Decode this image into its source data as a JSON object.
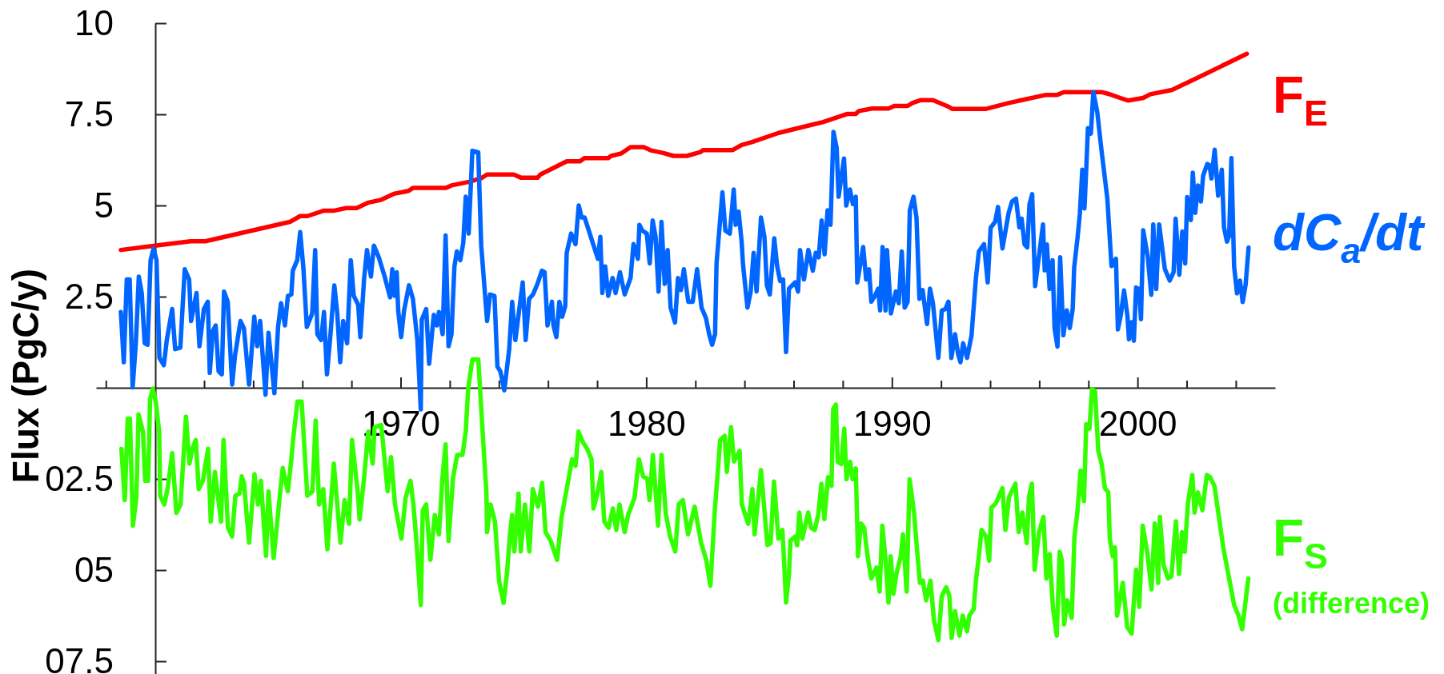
{
  "chart_data": {
    "type": "line",
    "ylabel": "Flux (PgC/y)",
    "xlim": [
      1957.6,
      2005.6
    ],
    "ylim": [
      -7.85,
      10
    ],
    "xticks": [
      {
        "value": 1958,
        "label": null
      },
      {
        "value": 1962,
        "label": null
      },
      {
        "value": 1964,
        "label": null
      },
      {
        "value": 1966,
        "label": null
      },
      {
        "value": 1968,
        "label": null
      },
      1970,
      {
        "value": 1972,
        "label": null
      },
      {
        "value": 1974,
        "label": null
      },
      {
        "value": 1976,
        "label": null
      },
      {
        "value": 1978,
        "label": null
      },
      1980,
      {
        "value": 1982,
        "label": null
      },
      {
        "value": 1984,
        "label": null
      },
      {
        "value": 1986,
        "label": null
      },
      {
        "value": 1988,
        "label": null
      },
      1990,
      {
        "value": 1992,
        "label": null
      },
      {
        "value": 1994,
        "label": null
      },
      {
        "value": 1996,
        "label": null
      },
      {
        "value": 1998,
        "label": null
      },
      2000,
      {
        "value": 2002,
        "label": null
      },
      {
        "value": 2004,
        "label": null
      }
    ],
    "yticks": [
      10,
      7.5,
      5,
      2.5,
      {
        "value": -2.5,
        "label": "02.5"
      },
      {
        "value": -5,
        "label": "05"
      },
      {
        "value": -7.5,
        "label": "07.5"
      }
    ],
    "annotations": [
      "(difference)"
    ],
    "series": [
      {
        "name": "F$_{E}$",
        "color": "#ff0000",
        "x": [
          1958.61,
          1960.0,
          1961.45,
          1962.05,
          1965.49,
          1965.91,
          1966.21,
          1966.88,
          1967.3,
          1967.78,
          1968.21,
          1968.69,
          1969.18,
          1969.72,
          1970.32,
          1970.5,
          1971.83,
          1972.07,
          1972.79,
          1973.28,
          1973.52,
          1974.6,
          1974.91,
          1975.57,
          1975.69,
          1976.34,
          1976.76,
          1977.3,
          1977.48,
          1978.45,
          1978.57,
          1978.99,
          1979.36,
          1979.9,
          1980.2,
          1980.69,
          1981.11,
          1981.65,
          1982.19,
          1982.31,
          1983.52,
          1983.88,
          1984.31,
          1985.39,
          1987.2,
          1988.17,
          1988.53,
          1988.65,
          1989.19,
          1989.86,
          1990.1,
          1990.64,
          1990.83,
          1991.18,
          1991.67,
          1992.27,
          1992.45,
          1993.84,
          1994.75,
          1996.24,
          1996.71,
          1997.0,
          1998.53,
          1998.82,
          1999.29,
          1999.61,
          2000.23,
          2000.52,
          2001.4,
          2002.46,
          2004.45
        ],
        "values": [
          3.78,
          3.9,
          4.02,
          4.02,
          4.55,
          4.71,
          4.71,
          4.86,
          4.86,
          4.93,
          4.93,
          5.08,
          5.15,
          5.32,
          5.4,
          5.48,
          5.48,
          5.55,
          5.65,
          5.75,
          5.85,
          5.85,
          5.76,
          5.76,
          5.85,
          6.07,
          6.21,
          6.21,
          6.3,
          6.3,
          6.36,
          6.43,
          6.6,
          6.6,
          6.51,
          6.44,
          6.36,
          6.36,
          6.46,
          6.52,
          6.52,
          6.66,
          6.74,
          6.99,
          7.29,
          7.51,
          7.51,
          7.59,
          7.66,
          7.66,
          7.73,
          7.73,
          7.81,
          7.89,
          7.89,
          7.72,
          7.65,
          7.65,
          7.81,
          8.03,
          8.03,
          8.11,
          8.11,
          8.06,
          7.95,
          7.88,
          7.95,
          8.05,
          8.17,
          8.51,
          9.16
        ]
      },
      {
        "name": "dC$_{a}$/dt",
        "color": "#0066ff",
        "x": [
          1958.61,
          1958.73,
          1958.85,
          1958.97,
          1959.09,
          1959.22,
          1959.34,
          1959.46,
          1959.58,
          1959.7,
          1959.82,
          1959.94,
          1960.06,
          1960.18,
          1960.36,
          1960.48,
          1960.7,
          1960.82,
          1961.03,
          1961.21,
          1961.39,
          1961.47,
          1961.69,
          1961.81,
          1961.99,
          1962.15,
          1962.23,
          1962.35,
          1962.47,
          1962.59,
          1962.72,
          1962.81,
          1962.96,
          1963.14,
          1963.26,
          1963.48,
          1963.62,
          1963.83,
          1964.04,
          1964.16,
          1964.28,
          1964.5,
          1964.62,
          1964.86,
          1965.01,
          1965.13,
          1965.29,
          1965.41,
          1965.55,
          1965.61,
          1965.79,
          1965.91,
          1966.04,
          1966.18,
          1966.4,
          1966.52,
          1966.61,
          1966.76,
          1966.88,
          1967.0,
          1967.12,
          1967.3,
          1967.42,
          1967.54,
          1967.66,
          1967.82,
          1967.97,
          1968.09,
          1968.27,
          1968.36,
          1968.51,
          1968.63,
          1968.79,
          1968.91,
          1969.11,
          1969.35,
          1969.57,
          1969.66,
          1969.75,
          1969.84,
          1969.9,
          1970.02,
          1970.14,
          1970.34,
          1970.5,
          1970.68,
          1970.82,
          1970.86,
          1971.04,
          1971.16,
          1971.35,
          1971.47,
          1971.56,
          1971.71,
          1971.83,
          1971.95,
          1972.07,
          1972.19,
          1972.29,
          1972.43,
          1972.55,
          1972.65,
          1972.77,
          1972.92,
          1973.16,
          1973.28,
          1973.52,
          1973.64,
          1973.82,
          1973.94,
          1974.06,
          1974.22,
          1974.42,
          1974.54,
          1974.67,
          1974.97,
          1975.09,
          1975.23,
          1975.39,
          1975.57,
          1975.75,
          1975.86,
          1975.98,
          1976.16,
          1976.22,
          1976.34,
          1976.46,
          1976.58,
          1976.7,
          1976.76,
          1976.94,
          1977.12,
          1977.25,
          1977.37,
          1977.49,
          1978.03,
          1978.13,
          1978.21,
          1978.33,
          1978.45,
          1978.63,
          1978.75,
          1978.93,
          1979.12,
          1979.36,
          1979.48,
          1979.66,
          1979.72,
          1979.84,
          1980.02,
          1980.14,
          1980.26,
          1980.38,
          1980.5,
          1980.62,
          1980.75,
          1980.87,
          1980.99,
          1981.17,
          1981.29,
          1981.41,
          1981.53,
          1981.71,
          1981.89,
          1982.07,
          1982.25,
          1982.43,
          1982.56,
          1982.68,
          1982.8,
          1982.86,
          1983.1,
          1983.22,
          1983.4,
          1983.56,
          1983.64,
          1983.76,
          1983.88,
          1983.94,
          1984.12,
          1984.25,
          1984.37,
          1984.49,
          1984.67,
          1984.81,
          1984.91,
          1985.03,
          1985.21,
          1985.33,
          1985.45,
          1985.57,
          1985.69,
          1985.81,
          1986.06,
          1986.18,
          1986.26,
          1986.42,
          1986.6,
          1986.78,
          1986.9,
          1987.02,
          1987.14,
          1987.26,
          1987.38,
          1987.5,
          1987.62,
          1987.75,
          1987.83,
          1988.05,
          1988.14,
          1988.29,
          1988.41,
          1988.53,
          1988.59,
          1988.83,
          1988.95,
          1989.07,
          1989.16,
          1989.31,
          1989.44,
          1989.52,
          1989.62,
          1989.74,
          1989.8,
          1989.96,
          1990.16,
          1990.28,
          1990.4,
          1990.52,
          1990.64,
          1990.73,
          1990.88,
          1991.0,
          1991.12,
          1991.25,
          1991.43,
          1991.55,
          1991.67,
          1991.89,
          1992.03,
          1992.18,
          1992.3,
          1992.42,
          1992.57,
          1992.69,
          1992.79,
          1992.9,
          1993.06,
          1993.24,
          1993.42,
          1993.54,
          1993.75,
          1993.9,
          1994.02,
          1994.2,
          1994.32,
          1994.5,
          1994.75,
          1994.89,
          1995.05,
          1995.19,
          1995.28,
          1995.4,
          1995.51,
          1995.6,
          1995.71,
          1995.83,
          1996.01,
          1996.15,
          1996.22,
          1996.31,
          1996.42,
          1996.54,
          1996.62,
          1996.74,
          1996.85,
          1996.98,
          1997.12,
          1997.24,
          1997.36,
          1997.42,
          1997.56,
          1997.65,
          1997.75,
          1997.84,
          1997.91,
          1997.98,
          1998.1,
          1998.2,
          1998.36,
          1998.53,
          1998.77,
          1998.94,
          1999.12,
          1999.2,
          1999.32,
          1999.45,
          1999.59,
          1999.65,
          1999.76,
          1999.85,
          1999.94,
          2000.06,
          2000.14,
          2000.23,
          2000.41,
          2000.56,
          2000.64,
          2000.76,
          2000.88,
          2001.11,
          2001.31,
          2001.47,
          2001.55,
          2001.7,
          2001.82,
          2001.94,
          2002.02,
          2002.17,
          2002.25,
          2002.35,
          2002.46,
          2002.58,
          2002.67,
          2002.84,
          2002.93,
          2003.01,
          2003.14,
          2003.28,
          2003.43,
          2003.52,
          2003.64,
          2003.73,
          2003.82,
          2003.93,
          2004.05,
          2004.17,
          2004.28,
          2004.4,
          2004.52
        ],
        "values": [
          2.08,
          0.7,
          2.97,
          2.97,
          0.01,
          1.22,
          3.05,
          2.6,
          1.22,
          1.18,
          3.5,
          3.82,
          3.5,
          0.82,
          0.62,
          1.31,
          2.16,
          1.06,
          1.1,
          3.25,
          2.97,
          1.83,
          2.6,
          1.14,
          2.16,
          2.36,
          0.41,
          1.55,
          1.71,
          0.45,
          0.37,
          2.64,
          2.36,
          0.09,
          0.9,
          1.83,
          1.63,
          0.09,
          1.95,
          1.14,
          1.83,
          -0.19,
          1.51,
          -0.15,
          1.67,
          2.32,
          1.71,
          2.52,
          2.56,
          3.21,
          3.5,
          4.27,
          3.29,
          1.67,
          2.04,
          3.78,
          1.47,
          1.31,
          2.08,
          0.37,
          1.27,
          2.81,
          2.04,
          0.7,
          1.83,
          1.22,
          3.5,
          2.52,
          2.28,
          1.39,
          2.97,
          3.78,
          3.05,
          3.9,
          3.58,
          3.05,
          2.48,
          3.25,
          2.52,
          3.17,
          2.12,
          1.39,
          2.12,
          2.81,
          2.44,
          1.31,
          -0.59,
          1.87,
          2.16,
          0.66,
          2.0,
          1.71,
          2.08,
          1.47,
          4.18,
          1.14,
          1.47,
          3.33,
          3.74,
          3.5,
          3.98,
          5.24,
          4.23,
          6.5,
          6.46,
          3.9,
          1.83,
          2.56,
          2.52,
          0.58,
          0.45,
          -0.07,
          1.06,
          2.36,
          1.31,
          2.89,
          1.31,
          2.44,
          2.56,
          2.85,
          3.21,
          3.17,
          1.71,
          2.36,
          1.71,
          1.39,
          2.36,
          1.95,
          2.24,
          3.7,
          4.23,
          3.94,
          5.0,
          4.67,
          4.67,
          3.54,
          4.14,
          2.6,
          3.33,
          2.52,
          3.01,
          2.6,
          3.17,
          2.56,
          3.01,
          3.94,
          3.54,
          4.47,
          4.31,
          4.23,
          3.41,
          4.59,
          4.14,
          2.64,
          4.55,
          2.85,
          3.78,
          2.2,
          1.79,
          3.01,
          2.68,
          3.25,
          2.36,
          2.36,
          3.25,
          2.2,
          1.91,
          1.47,
          1.18,
          1.47,
          3.41,
          5.36,
          4.31,
          4.23,
          5.44,
          4.47,
          4.83,
          4.02,
          3.37,
          2.2,
          2.64,
          3.7,
          2.64,
          4.67,
          4.14,
          2.81,
          2.56,
          4.1,
          3.33,
          2.93,
          2.97,
          0.98,
          2.72,
          2.89,
          2.64,
          3.78,
          2.97,
          3.78,
          3.21,
          3.7,
          3.58,
          4.59,
          3.66,
          4.87,
          4.47,
          7.02,
          6.58,
          5.24,
          6.29,
          5.0,
          5.44,
          5.04,
          5.24,
          2.89,
          3.86,
          2.97,
          3.25,
          2.36,
          2.52,
          2.72,
          2.12,
          3.86,
          2.12,
          3.78,
          2.04,
          2.64,
          2.32,
          3.74,
          2.2,
          2.36,
          4.87,
          5.24,
          4.67,
          2.44,
          2.68,
          1.75,
          2.72,
          2.32,
          0.82,
          2.12,
          2.16,
          2.36,
          0.82,
          1.47,
          0.94,
          0.7,
          1.22,
          0.82,
          1.43,
          3.01,
          3.74,
          3.94,
          2.89,
          4.39,
          4.55,
          4.96,
          3.82,
          4.79,
          5.11,
          5.19,
          4.4,
          4.64,
          3.93,
          3.85,
          5.03,
          5.31,
          2.79,
          3.73,
          4.48,
          3.22,
          3.93,
          2.71,
          3.5,
          1.64,
          1.13,
          3.58,
          1.44,
          2.12,
          1.64,
          2.16,
          3.3,
          4.13,
          4.76,
          5.98,
          4.92,
          5.98,
          7.12,
          6.97,
          8.11,
          7.56,
          6.53,
          5.19,
          3.34,
          3.54,
          1.6,
          2.0,
          2.67,
          1.96,
          1.33,
          1.8,
          1.29,
          2.75,
          2.71,
          1.88,
          4.32,
          3.62,
          2.55,
          4.48,
          2.71,
          4.48,
          3.26,
          2.94,
          3.18,
          4.64,
          3.1,
          4.29,
          3.41,
          5.23,
          4.6,
          5.9,
          4.8,
          5.55,
          5.11,
          5.82,
          6.14,
          6.1,
          5.74,
          6.53,
          5.27,
          5.98,
          4.4,
          4.01,
          4.17,
          6.3,
          3.34,
          2.59,
          2.94,
          2.35,
          2.83,
          3.85
        ]
      },
      {
        "name": "F$_{S}$",
        "color": "#33ff00",
        "x": [
          1958.63,
          1958.77,
          1958.89,
          1958.98,
          1959.1,
          1959.24,
          1959.33,
          1959.51,
          1959.6,
          1959.72,
          1959.8,
          1959.91,
          1960.03,
          1960.17,
          1960.21,
          1960.38,
          1960.52,
          1960.7,
          1960.87,
          1961.04,
          1961.26,
          1961.4,
          1961.52,
          1961.66,
          1961.78,
          1961.95,
          1962.16,
          1962.27,
          1962.44,
          1962.69,
          1962.79,
          1962.97,
          1963.14,
          1963.27,
          1963.44,
          1963.53,
          1963.62,
          1963.83,
          1964.05,
          1964.19,
          1964.31,
          1964.52,
          1964.62,
          1964.83,
          1965.1,
          1965.2,
          1965.41,
          1965.55,
          1965.62,
          1965.8,
          1965.97,
          1966.2,
          1966.41,
          1966.54,
          1966.68,
          1966.85,
          1967.02,
          1967.28,
          1967.55,
          1967.72,
          1967.9,
          1968.02,
          1968.25,
          1968.33,
          1968.51,
          1968.68,
          1968.86,
          1968.94,
          1969.21,
          1969.47,
          1969.61,
          1969.77,
          1970.03,
          1970.2,
          1970.4,
          1970.52,
          1970.66,
          1970.82,
          1970.9,
          1971.04,
          1971.21,
          1971.39,
          1971.56,
          1971.7,
          1971.83,
          1971.95,
          1972.13,
          1972.3,
          1972.52,
          1972.65,
          1972.75,
          1972.92,
          1973.16,
          1973.4,
          1973.49,
          1973.52,
          1973.66,
          1973.84,
          1974.01,
          1974.19,
          1974.33,
          1974.45,
          1974.54,
          1974.63,
          1974.8,
          1974.89,
          1975.06,
          1975.24,
          1975.38,
          1975.59,
          1975.76,
          1975.9,
          1976.11,
          1976.37,
          1976.55,
          1976.98,
          1977.12,
          1977.24,
          1977.42,
          1977.59,
          1977.77,
          1977.85,
          1978.03,
          1978.17,
          1978.29,
          1978.47,
          1978.64,
          1978.78,
          1978.91,
          1979.12,
          1979.26,
          1979.52,
          1979.7,
          1979.87,
          1980.04,
          1980.13,
          1980.27,
          1980.48,
          1980.62,
          1980.79,
          1980.97,
          1981.18,
          1981.32,
          1981.49,
          1981.7,
          1981.97,
          1982.23,
          1982.44,
          1982.61,
          1982.79,
          1983.01,
          1983.19,
          1983.28,
          1983.45,
          1983.57,
          1983.8,
          1983.89,
          1984.15,
          1984.32,
          1984.41,
          1984.67,
          1984.93,
          1985.06,
          1985.2,
          1985.38,
          1985.54,
          1985.6,
          1985.69,
          1985.81,
          1985.87,
          1986.05,
          1986.14,
          1986.23,
          1986.35,
          1986.59,
          1986.71,
          1986.86,
          1987.0,
          1987.13,
          1987.25,
          1987.4,
          1987.54,
          1987.61,
          1987.72,
          1987.79,
          1987.94,
          1988.06,
          1988.15,
          1988.3,
          1988.4,
          1988.53,
          1988.62,
          1988.74,
          1988.87,
          1989.01,
          1989.16,
          1989.37,
          1989.5,
          1989.61,
          1989.73,
          1989.86,
          1989.95,
          1990.06,
          1990.18,
          1990.36,
          1990.45,
          1990.6,
          1990.72,
          1990.9,
          1991.03,
          1991.14,
          1991.26,
          1991.39,
          1991.57,
          1991.71,
          1991.89,
          1992.03,
          1992.21,
          1992.34,
          1992.43,
          1992.57,
          1992.75,
          1992.88,
          1993.06,
          1993.15,
          1993.33,
          1993.42,
          1993.54,
          1993.65,
          1993.83,
          1993.96,
          1994.05,
          1994.23,
          1994.5,
          1994.62,
          1994.77,
          1995.03,
          1995.16,
          1995.31,
          1995.49,
          1995.58,
          1995.7,
          1995.81,
          1995.99,
          1996.17,
          1996.29,
          1996.42,
          1996.56,
          1996.71,
          1996.83,
          1996.92,
          1997.01,
          1997.14,
          1997.32,
          1997.43,
          1997.55,
          1997.68,
          1997.82,
          1997.91,
          1998.04,
          1998.15,
          1998.27,
          1998.4,
          1998.54,
          1998.67,
          1998.81,
          1998.87,
          1998.99,
          1999.08,
          1999.17,
          1999.4,
          1999.58,
          1999.76,
          1999.94,
          2000.07,
          2000.21,
          2000.39,
          2000.57,
          2000.7,
          2000.84,
          2000.91,
          2001.06,
          2001.24,
          2001.38,
          2001.56,
          2001.69,
          2001.81,
          2001.92,
          2002.05,
          2002.23,
          2002.32,
          2002.46,
          2002.64,
          2002.82,
          2002.95,
          2003.13,
          2003.49,
          2003.93,
          2004.11,
          2004.26,
          2004.51
        ],
        "values": [
          -1.67,
          -3.08,
          -0.85,
          -0.85,
          -3.78,
          -3.02,
          -0.73,
          -1.2,
          -2.55,
          -2.55,
          -0.32,
          -0.02,
          -0.38,
          -1.2,
          -2.96,
          -3.2,
          -2.73,
          -1.79,
          -3.43,
          -3.2,
          -0.79,
          -2.08,
          -1.67,
          -1.43,
          -2.78,
          -2.55,
          -1.67,
          -3.67,
          -2.31,
          -3.67,
          -1.43,
          -3.84,
          -4.08,
          -2.96,
          -2.9,
          -2.43,
          -2.61,
          -4.25,
          -2.37,
          -3.2,
          -2.55,
          -4.61,
          -2.84,
          -4.67,
          -2.84,
          -2.2,
          -2.84,
          -1.96,
          -1.43,
          -0.38,
          -0.38,
          -2.96,
          -2.84,
          -0.9,
          -3.2,
          -2.78,
          -4.43,
          -2.08,
          -4.25,
          -3.08,
          -3.73,
          -1.43,
          -2.84,
          -3.61,
          -2.49,
          -1.2,
          -2.08,
          -1.08,
          -1.02,
          -2.84,
          -1.9,
          -3.2,
          -4.14,
          -3.02,
          -2.55,
          -3.2,
          -4.37,
          -5.96,
          -3.37,
          -3.2,
          -4.72,
          -3.49,
          -4.02,
          -2.49,
          -1.55,
          -4.2,
          -2.49,
          -1.84,
          -1.84,
          -1.2,
          -0.02,
          0.78,
          0.78,
          -1.9,
          -2.84,
          -3.96,
          -3.2,
          -3.67,
          -5.31,
          -5.9,
          -5.08,
          -4.02,
          -3.49,
          -4.49,
          -2.9,
          -4.49,
          -3.2,
          -4.49,
          -2.78,
          -3.26,
          -2.61,
          -3.96,
          -4.2,
          -4.72,
          -3.55,
          -1.96,
          -2.14,
          -1.2,
          -1.49,
          -1.67,
          -1.96,
          -3.31,
          -2.84,
          -2.31,
          -3.67,
          -3.84,
          -3.31,
          -3.9,
          -3.2,
          -3.96,
          -3.49,
          -3.02,
          -1.96,
          -2.43,
          -2.49,
          -3.08,
          -1.84,
          -3.78,
          -1.84,
          -3.43,
          -4.08,
          -4.49,
          -3.2,
          -3.08,
          -4.02,
          -3.26,
          -4.25,
          -4.72,
          -5.43,
          -3.37,
          -1.43,
          -1.32,
          -2.31,
          -1.08,
          -2.02,
          -1.73,
          -3.2,
          -3.73,
          -2.78,
          -4.02,
          -2.26,
          -4.31,
          -4.26,
          -2.57,
          -4.14,
          -3.9,
          -4.62,
          -5.89,
          -5.11,
          -4.2,
          -4.08,
          -4.32,
          -3.42,
          -4.14,
          -3.42,
          -3.84,
          -3.9,
          -3.48,
          -2.63,
          -3.6,
          -2.45,
          -2.69,
          -0.58,
          -0.46,
          -2.03,
          -2.09,
          -1.12,
          -2.51,
          -2.03,
          -2.51,
          -2.21,
          -4.62,
          -3.72,
          -3.84,
          -4.62,
          -5.23,
          -4.93,
          -5.59,
          -3.78,
          -4.62,
          -5.89,
          -4.62,
          -5.65,
          -5.11,
          -4.62,
          -4.02,
          -5.59,
          -2.51,
          -3.42,
          -4.5,
          -5.35,
          -5.29,
          -5.83,
          -5.29,
          -6.37,
          -6.92,
          -5.71,
          -5.47,
          -5.71,
          -6.86,
          -6.13,
          -6.8,
          -6.25,
          -6.68,
          -6.25,
          -6.07,
          -5.29,
          -4.62,
          -3.9,
          -4.08,
          -4.74,
          -3.29,
          -3.17,
          -2.75,
          -3.9,
          -2.99,
          -2.63,
          -3.96,
          -3.42,
          -4.26,
          -2.99,
          -2.63,
          -4.99,
          -3.96,
          -3.54,
          -5.23,
          -4.56,
          -6.07,
          -6.8,
          -4.5,
          -4.74,
          -6.49,
          -5.83,
          -6.31,
          -4.08,
          -3.42,
          -2.27,
          -3.11,
          -1.0,
          -1.12,
          -0.03,
          -0.09,
          -1.72,
          -2.09,
          -2.75,
          -2.87,
          -4.14,
          -4.62,
          -4.38,
          -6.25,
          -5.35,
          -6.56,
          -6.74,
          -4.99,
          -6.01,
          -3.78,
          -4.5,
          -5.53,
          -3.72,
          -5.35,
          -3.54,
          -4.86,
          -5.23,
          -5.17,
          -3.66,
          -5.11,
          -3.96,
          -4.5,
          -3.17,
          -2.39,
          -3.42,
          -2.87,
          -3.36,
          -2.39,
          -2.45,
          -2.69,
          -4.38,
          -5.95,
          -6.25,
          -6.62,
          -5.23
        ]
      }
    ]
  }
}
